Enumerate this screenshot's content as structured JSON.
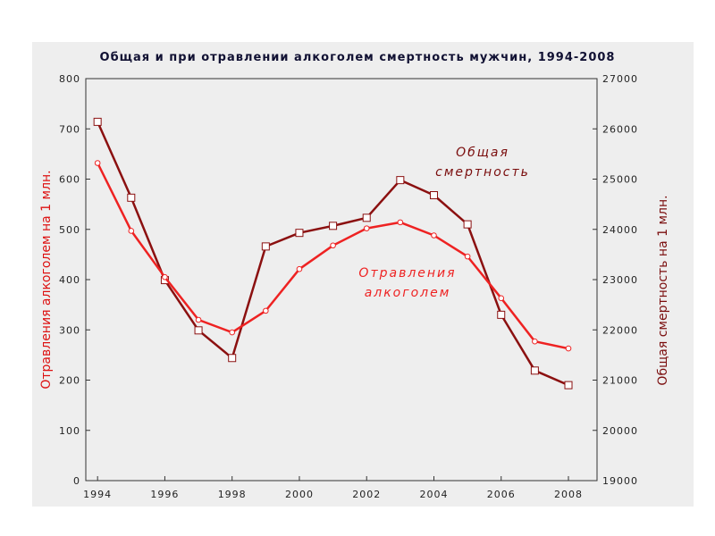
{
  "chart_data": {
    "type": "line",
    "title": "Общая и при отравлении алкоголем  смертность  мужчин, 1994-2008",
    "x": [
      1994,
      1995,
      1996,
      1997,
      1998,
      1999,
      2000,
      2001,
      2002,
      2003,
      2004,
      2005,
      2006,
      2007,
      2008
    ],
    "x_ticks": [
      "1994",
      "1996",
      "1998",
      "2000",
      "2002",
      "2004",
      "2006",
      "2008"
    ],
    "y_left": {
      "label": "Отравления  алкоголем  на 1 млн.",
      "ylim": [
        0,
        800
      ],
      "ticks": [
        "0",
        "100",
        "200",
        "300",
        "400",
        "500",
        "600",
        "700",
        "800"
      ],
      "color": "#dd1111"
    },
    "y_right": {
      "label": "Общая смертность на 1 млн.",
      "ylim": [
        19000,
        27000
      ],
      "ticks": [
        "19000",
        "20000",
        "21000",
        "22000",
        "23000",
        "24000",
        "25000",
        "26000",
        "27000"
      ],
      "color": "#7a0d0d"
    },
    "series": [
      {
        "name": "Отравления алкоголем",
        "axis": "left",
        "marker": "circle",
        "color": "#ee2222",
        "values": [
          632,
          497,
          405,
          320,
          295,
          338,
          421,
          468,
          502,
          514,
          488,
          446,
          363,
          277,
          263
        ]
      },
      {
        "name": "Общая смертность",
        "axis": "right",
        "marker": "square",
        "color": "#8b1010",
        "values": [
          26140,
          24630,
          22990,
          21990,
          21440,
          23660,
          23930,
          24070,
          24230,
          24980,
          24680,
          24100,
          22300,
          21190,
          20900
        ]
      }
    ],
    "annotations": [
      {
        "lines": [
          "Общая",
          "смертность"
        ],
        "series": "Общая смертность"
      },
      {
        "lines": [
          "Отравления",
          "алкоголем"
        ],
        "series": "Отравления алкоголем"
      }
    ],
    "grid": false,
    "legend": "none"
  }
}
